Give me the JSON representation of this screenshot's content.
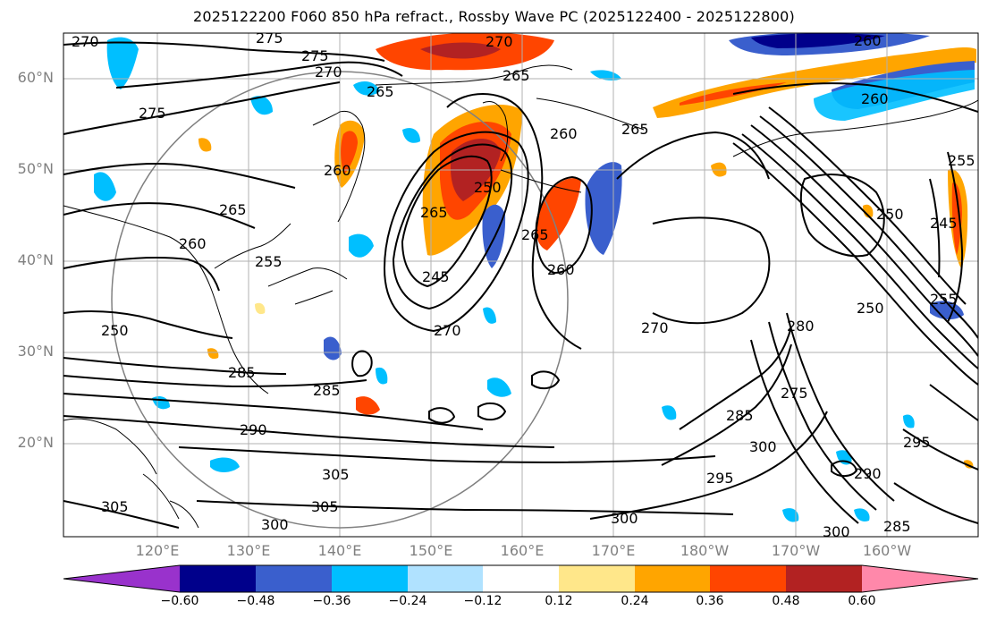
{
  "title": "2025122200 F060 850 hPa refract., Rossby Wave PC (2025122400 - 2025122800)",
  "lat_labels": [
    "60°N",
    "50°N",
    "40°N",
    "30°N",
    "20°N"
  ],
  "lon_labels": [
    "120°E",
    "130°E",
    "140°E",
    "150°E",
    "160°E",
    "170°E",
    "180°W",
    "170°W",
    "160°W"
  ],
  "colorbar": {
    "tick_labels": [
      "−0.60",
      "−0.48",
      "−0.36",
      "−0.24",
      "−0.12",
      "0.12",
      "0.24",
      "0.36",
      "0.48",
      "0.60"
    ],
    "colors": [
      "#9932cc",
      "#00008b",
      "#3a5fcd",
      "#00bfff",
      "#b0e2ff",
      "#ffffff",
      "#ffe78a",
      "#ffa500",
      "#ff4500",
      "#b22222",
      "#ff88aa"
    ]
  },
  "contour_labels": [
    "270",
    "275",
    "275",
    "270",
    "270",
    "265",
    "265",
    "260",
    "275",
    "260",
    "265",
    "260",
    "250",
    "255",
    "265",
    "260",
    "245",
    "260",
    "250",
    "255",
    "265",
    "265",
    "260",
    "250",
    "245",
    "250",
    "255",
    "270",
    "270",
    "280",
    "285",
    "275",
    "285",
    "285",
    "290",
    "295",
    "300",
    "290",
    "295",
    "285",
    "305",
    "305",
    "300",
    "300",
    "300",
    "305"
  ]
}
